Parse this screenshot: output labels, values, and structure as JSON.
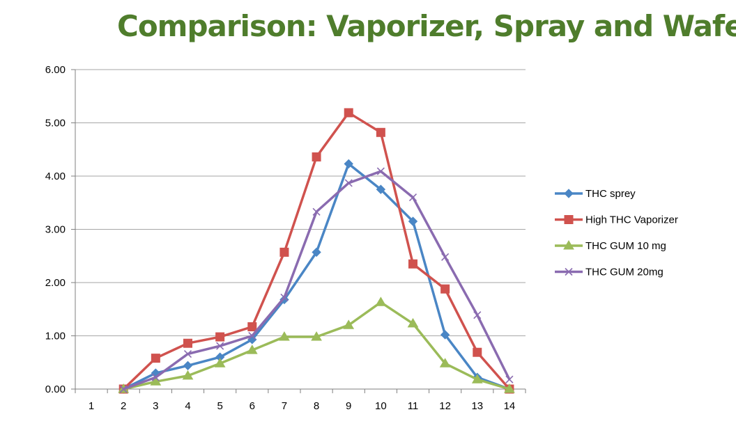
{
  "chart_data": {
    "type": "line",
    "title": "Comparison: Vaporizer, Spray and Wafer",
    "title_color": "#4f7d2c",
    "xlabel": "",
    "ylabel": "",
    "categories": [
      "1",
      "2",
      "3",
      "4",
      "5",
      "6",
      "7",
      "8",
      "9",
      "10",
      "11",
      "12",
      "13",
      "14"
    ],
    "y_tick_labels": [
      "0.00",
      "1.00",
      "2.00",
      "3.00",
      "4.00",
      "5.00",
      "6.00"
    ],
    "ylim": [
      0,
      6
    ],
    "grid": true,
    "legend_position": "right",
    "series": [
      {
        "name": "THC sprey",
        "color": "#4a86c5",
        "marker": "diamond",
        "values": [
          null,
          0.0,
          0.3,
          0.44,
          0.6,
          0.93,
          1.68,
          2.57,
          4.23,
          3.75,
          3.15,
          1.02,
          0.22,
          0.0
        ]
      },
      {
        "name": "High THC Vaporizer",
        "color": "#d0524e",
        "marker": "square",
        "values": [
          null,
          0.0,
          0.58,
          0.86,
          0.98,
          1.17,
          2.57,
          4.36,
          5.19,
          4.82,
          2.35,
          1.88,
          0.69,
          0.0
        ]
      },
      {
        "name": "THC GUM 10 mg",
        "color": "#9bbb59",
        "marker": "triangle",
        "values": [
          null,
          0.0,
          0.14,
          0.25,
          0.48,
          0.73,
          0.98,
          0.98,
          1.2,
          1.63,
          1.23,
          0.48,
          0.18,
          0.0
        ]
      },
      {
        "name": "THC GUM 20mg",
        "color": "#8a6bb0",
        "marker": "x",
        "values": [
          null,
          0.0,
          0.22,
          0.66,
          0.81,
          1.0,
          1.72,
          3.33,
          3.87,
          4.09,
          3.6,
          2.48,
          1.39,
          0.18
        ]
      }
    ]
  }
}
